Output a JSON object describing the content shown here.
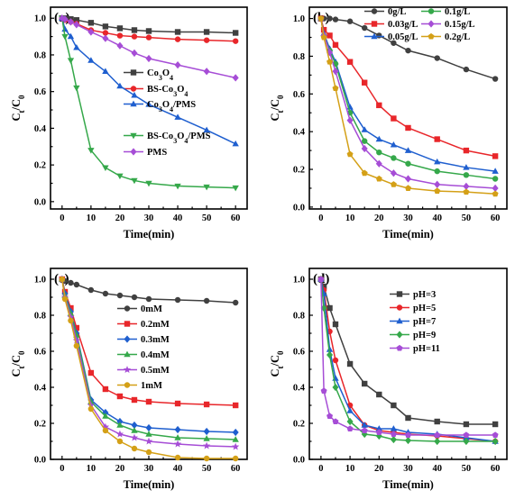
{
  "chart_data": [
    {
      "type": "line",
      "panel_label": "(a)",
      "xlabel": "Time(min)",
      "ylabel": "Ct/C0",
      "xlim": [
        -4,
        64
      ],
      "ylim": [
        -0.04,
        1.06
      ],
      "xticks": [
        0,
        10,
        20,
        30,
        40,
        50,
        60
      ],
      "yticks": [
        0.0,
        0.2,
        0.4,
        0.6,
        0.8,
        1.0
      ],
      "x": [
        0,
        1,
        3,
        5,
        10,
        15,
        20,
        25,
        30,
        40,
        50,
        60
      ],
      "legend_placement": "middle",
      "series": [
        {
          "name": "Co3O4",
          "sub": "3,4",
          "color": "#404040",
          "marker": "square",
          "legend": "l1",
          "values": [
            1.0,
            1.0,
            0.995,
            0.99,
            0.975,
            0.955,
            0.945,
            0.935,
            0.93,
            0.925,
            0.925,
            0.92
          ]
        },
        {
          "name": "BS-Co3O4",
          "sub": "3,4",
          "color": "#e8262a",
          "marker": "circle",
          "legend": "l2",
          "values": [
            1.0,
            0.99,
            0.98,
            0.97,
            0.935,
            0.92,
            0.905,
            0.9,
            0.895,
            0.885,
            0.88,
            0.875
          ]
        },
        {
          "name": "Co3O4/PMS",
          "sub": "3,4",
          "color": "#1f5fcf",
          "marker": "triangle-up",
          "legend": "l3",
          "values": [
            1.0,
            0.94,
            0.9,
            0.84,
            0.77,
            0.71,
            0.63,
            0.58,
            0.53,
            0.46,
            0.39,
            0.315
          ]
        },
        {
          "name": "BS-Co3O4/PMS",
          "sub": "3,4",
          "color": "#35a84a",
          "marker": "triangle-down",
          "legend": "l4",
          "values": [
            1.0,
            0.9,
            0.77,
            0.62,
            0.28,
            0.185,
            0.14,
            0.115,
            0.1,
            0.085,
            0.08,
            0.075
          ]
        },
        {
          "name": "PMS",
          "sub": "",
          "color": "#a64dd6",
          "marker": "diamond",
          "legend": "l5",
          "values": [
            1.0,
            0.995,
            0.98,
            0.965,
            0.925,
            0.89,
            0.85,
            0.81,
            0.78,
            0.745,
            0.71,
            0.675
          ]
        }
      ]
    },
    {
      "type": "line",
      "panel_label": "(b)",
      "xlabel": "Time(min)",
      "ylabel": "Ct/C0",
      "xlim": [
        -4,
        64
      ],
      "ylim": [
        -0.01,
        1.06
      ],
      "xticks": [
        0,
        10,
        20,
        30,
        40,
        50,
        60
      ],
      "yticks": [
        0.0,
        0.2,
        0.4,
        0.6,
        0.8,
        1.0
      ],
      "x": [
        0,
        1,
        3,
        5,
        10,
        15,
        20,
        25,
        30,
        40,
        50,
        60
      ],
      "legend_placement": "top-right",
      "series": [
        {
          "name": "0g/L",
          "color": "#404040",
          "marker": "circle",
          "legend": "b1",
          "values": [
            1.0,
            1.0,
            1.0,
            0.995,
            0.985,
            0.95,
            0.91,
            0.87,
            0.83,
            0.79,
            0.73,
            0.68
          ]
        },
        {
          "name": "0.03g/L",
          "color": "#e8262a",
          "marker": "square",
          "legend": "b2",
          "values": [
            1.0,
            0.94,
            0.91,
            0.86,
            0.77,
            0.66,
            0.54,
            0.47,
            0.42,
            0.36,
            0.3,
            0.27
          ]
        },
        {
          "name": "0.05g/L",
          "color": "#1f5fcf",
          "marker": "triangle-up",
          "legend": "b3",
          "values": [
            1.0,
            0.92,
            0.84,
            0.77,
            0.53,
            0.41,
            0.36,
            0.33,
            0.3,
            0.24,
            0.21,
            0.19
          ]
        },
        {
          "name": "0.1g/L",
          "color": "#35a84a",
          "marker": "circle",
          "legend": "b4",
          "values": [
            1.0,
            0.91,
            0.83,
            0.76,
            0.5,
            0.35,
            0.29,
            0.26,
            0.23,
            0.19,
            0.17,
            0.15
          ]
        },
        {
          "name": "0.15g/L",
          "color": "#a64dd6",
          "marker": "diamond",
          "legend": "b5",
          "values": [
            1.0,
            0.91,
            0.82,
            0.72,
            0.46,
            0.31,
            0.23,
            0.18,
            0.15,
            0.12,
            0.11,
            0.1
          ]
        },
        {
          "name": "0.2g/L",
          "color": "#d4a017",
          "marker": "pentagon",
          "legend": "b6",
          "values": [
            1.0,
            0.9,
            0.77,
            0.63,
            0.28,
            0.18,
            0.15,
            0.12,
            0.1,
            0.085,
            0.08,
            0.07
          ]
        }
      ]
    },
    {
      "type": "line",
      "panel_label": "(c)",
      "xlabel": "Time(min)",
      "ylabel": "Ct/C0",
      "xlim": [
        -4,
        64
      ],
      "ylim": [
        0.0,
        1.06
      ],
      "xticks": [
        0,
        10,
        20,
        30,
        40,
        50,
        60
      ],
      "yticks": [
        0.0,
        0.2,
        0.4,
        0.6,
        0.8,
        1.0
      ],
      "x": [
        0,
        1,
        3,
        5,
        10,
        15,
        20,
        25,
        30,
        40,
        50,
        60
      ],
      "legend_placement": "right",
      "series": [
        {
          "name": "0mM",
          "color": "#404040",
          "marker": "circle",
          "legend": "c1",
          "values": [
            1.0,
            0.99,
            0.98,
            0.97,
            0.94,
            0.92,
            0.91,
            0.9,
            0.89,
            0.885,
            0.88,
            0.87
          ]
        },
        {
          "name": "0.2mM",
          "color": "#e8262a",
          "marker": "square",
          "legend": "c2",
          "values": [
            1.0,
            0.93,
            0.84,
            0.73,
            0.48,
            0.39,
            0.35,
            0.33,
            0.32,
            0.31,
            0.305,
            0.3
          ]
        },
        {
          "name": "0.3mM",
          "color": "#1f5fcf",
          "marker": "diamond",
          "legend": "c3",
          "values": [
            1.0,
            0.92,
            0.82,
            0.7,
            0.33,
            0.26,
            0.21,
            0.19,
            0.175,
            0.165,
            0.155,
            0.15
          ]
        },
        {
          "name": "0.4mM",
          "color": "#35a84a",
          "marker": "triangle-up",
          "legend": "c4",
          "values": [
            1.0,
            0.91,
            0.81,
            0.69,
            0.32,
            0.24,
            0.19,
            0.16,
            0.14,
            0.12,
            0.115,
            0.11
          ]
        },
        {
          "name": "0.5mM",
          "color": "#a64dd6",
          "marker": "star",
          "legend": "c5",
          "values": [
            1.0,
            0.9,
            0.79,
            0.66,
            0.3,
            0.18,
            0.14,
            0.12,
            0.1,
            0.085,
            0.075,
            0.07
          ]
        },
        {
          "name": "1mM",
          "color": "#d4a017",
          "marker": "circle",
          "legend": "c6",
          "values": [
            1.0,
            0.89,
            0.77,
            0.63,
            0.28,
            0.16,
            0.1,
            0.06,
            0.04,
            0.01,
            0.005,
            0.005
          ]
        }
      ]
    },
    {
      "type": "line",
      "panel_label": "(d)",
      "xlabel": "Time(min)",
      "ylabel": "Ct/C0",
      "xlim": [
        -4,
        64
      ],
      "ylim": [
        0.0,
        1.06
      ],
      "xticks": [
        0,
        10,
        20,
        30,
        40,
        50,
        60
      ],
      "yticks": [
        0.0,
        0.2,
        0.4,
        0.6,
        0.8,
        1.0
      ],
      "x": [
        0,
        1,
        3,
        5,
        10,
        15,
        20,
        25,
        30,
        40,
        50,
        60
      ],
      "legend_placement": "top-right",
      "series": [
        {
          "name": "pH=3",
          "color": "#404040",
          "marker": "square",
          "legend": "d1",
          "values": [
            1.0,
            0.96,
            0.84,
            0.75,
            0.53,
            0.42,
            0.36,
            0.3,
            0.23,
            0.21,
            0.195,
            0.195
          ]
        },
        {
          "name": "pH=5",
          "color": "#e8262a",
          "marker": "circle",
          "legend": "d2",
          "values": [
            1.0,
            0.94,
            0.71,
            0.55,
            0.3,
            0.19,
            0.16,
            0.15,
            0.14,
            0.13,
            0.115,
            0.1
          ]
        },
        {
          "name": "pH=7",
          "color": "#1f5fcf",
          "marker": "triangle-up",
          "legend": "d3",
          "values": [
            1.0,
            0.92,
            0.61,
            0.45,
            0.27,
            0.19,
            0.17,
            0.17,
            0.15,
            0.14,
            0.12,
            0.1
          ]
        },
        {
          "name": "pH=9",
          "color": "#35a84a",
          "marker": "diamond",
          "legend": "d4",
          "values": [
            1.0,
            0.84,
            0.58,
            0.4,
            0.21,
            0.14,
            0.13,
            0.11,
            0.105,
            0.1,
            0.1,
            0.1
          ]
        },
        {
          "name": "pH=11",
          "color": "#a64dd6",
          "marker": "pentagon",
          "legend": "d5",
          "values": [
            1.0,
            0.38,
            0.24,
            0.21,
            0.17,
            0.16,
            0.15,
            0.14,
            0.135,
            0.135,
            0.135,
            0.135
          ]
        }
      ]
    }
  ]
}
